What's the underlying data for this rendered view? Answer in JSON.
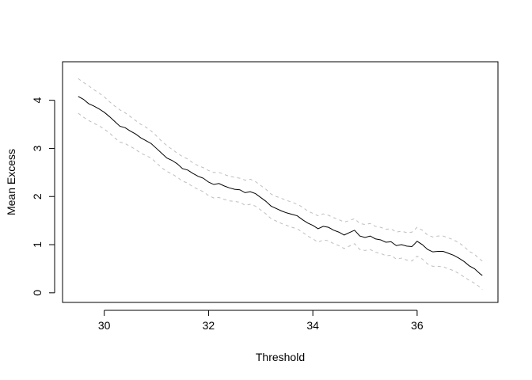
{
  "chart_data": {
    "type": "line",
    "title": "",
    "xlabel": "Threshold",
    "ylabel": "Mean Excess",
    "xlim": [
      29.2,
      37.55
    ],
    "ylim": [
      -0.2,
      4.8
    ],
    "x_ticks": [
      30,
      32,
      34,
      36
    ],
    "y_ticks": [
      0,
      1,
      2,
      3,
      4
    ],
    "grid": false,
    "legend": "none",
    "series": [
      {
        "role": "estimate",
        "color": "#000000",
        "line_style": "solid",
        "points": [
          [
            29.5,
            4.08
          ],
          [
            29.6,
            4.02
          ],
          [
            29.7,
            3.93
          ],
          [
            29.8,
            3.88
          ],
          [
            29.9,
            3.82
          ],
          [
            30.0,
            3.75
          ],
          [
            30.1,
            3.66
          ],
          [
            30.2,
            3.56
          ],
          [
            30.3,
            3.46
          ],
          [
            30.4,
            3.43
          ],
          [
            30.5,
            3.36
          ],
          [
            30.6,
            3.3
          ],
          [
            30.7,
            3.22
          ],
          [
            30.8,
            3.16
          ],
          [
            30.9,
            3.1
          ],
          [
            31.0,
            3.0
          ],
          [
            31.1,
            2.9
          ],
          [
            31.2,
            2.8
          ],
          [
            31.3,
            2.75
          ],
          [
            31.4,
            2.68
          ],
          [
            31.5,
            2.58
          ],
          [
            31.6,
            2.55
          ],
          [
            31.7,
            2.48
          ],
          [
            31.8,
            2.42
          ],
          [
            31.9,
            2.38
          ],
          [
            32.0,
            2.3
          ],
          [
            32.1,
            2.25
          ],
          [
            32.2,
            2.27
          ],
          [
            32.3,
            2.22
          ],
          [
            32.4,
            2.18
          ],
          [
            32.5,
            2.15
          ],
          [
            32.6,
            2.14
          ],
          [
            32.7,
            2.08
          ],
          [
            32.8,
            2.1
          ],
          [
            32.9,
            2.06
          ],
          [
            33.0,
            1.98
          ],
          [
            33.1,
            1.9
          ],
          [
            33.2,
            1.8
          ],
          [
            33.3,
            1.75
          ],
          [
            33.4,
            1.7
          ],
          [
            33.5,
            1.66
          ],
          [
            33.6,
            1.63
          ],
          [
            33.7,
            1.6
          ],
          [
            33.8,
            1.52
          ],
          [
            33.9,
            1.45
          ],
          [
            34.0,
            1.4
          ],
          [
            34.1,
            1.33
          ],
          [
            34.2,
            1.38
          ],
          [
            34.3,
            1.36
          ],
          [
            34.4,
            1.3
          ],
          [
            34.5,
            1.26
          ],
          [
            34.6,
            1.2
          ],
          [
            34.7,
            1.25
          ],
          [
            34.8,
            1.3
          ],
          [
            34.9,
            1.18
          ],
          [
            35.0,
            1.15
          ],
          [
            35.1,
            1.18
          ],
          [
            35.2,
            1.12
          ],
          [
            35.3,
            1.1
          ],
          [
            35.4,
            1.05
          ],
          [
            35.5,
            1.06
          ],
          [
            35.6,
            0.98
          ],
          [
            35.7,
            1.0
          ],
          [
            35.8,
            0.97
          ],
          [
            35.9,
            0.96
          ],
          [
            36.0,
            1.07
          ],
          [
            36.1,
            1.0
          ],
          [
            36.2,
            0.9
          ],
          [
            36.3,
            0.85
          ],
          [
            36.4,
            0.86
          ],
          [
            36.5,
            0.86
          ],
          [
            36.6,
            0.82
          ],
          [
            36.7,
            0.78
          ],
          [
            36.8,
            0.72
          ],
          [
            36.9,
            0.65
          ],
          [
            37.0,
            0.56
          ],
          [
            37.1,
            0.5
          ],
          [
            37.2,
            0.4
          ],
          [
            37.25,
            0.36
          ]
        ]
      },
      {
        "role": "upper-confidence-band",
        "color": "#bebebe",
        "line_style": "dashed",
        "points": [
          [
            29.5,
            4.45
          ],
          [
            29.6,
            4.37
          ],
          [
            29.7,
            4.3
          ],
          [
            29.8,
            4.22
          ],
          [
            29.9,
            4.15
          ],
          [
            30.0,
            4.07
          ],
          [
            30.1,
            3.97
          ],
          [
            30.2,
            3.88
          ],
          [
            30.3,
            3.8
          ],
          [
            30.4,
            3.74
          ],
          [
            30.5,
            3.66
          ],
          [
            30.6,
            3.58
          ],
          [
            30.7,
            3.5
          ],
          [
            30.8,
            3.44
          ],
          [
            30.9,
            3.36
          ],
          [
            31.0,
            3.26
          ],
          [
            31.1,
            3.15
          ],
          [
            31.2,
            3.06
          ],
          [
            31.3,
            2.98
          ],
          [
            31.4,
            2.9
          ],
          [
            31.5,
            2.83
          ],
          [
            31.6,
            2.78
          ],
          [
            31.7,
            2.7
          ],
          [
            31.8,
            2.64
          ],
          [
            31.9,
            2.6
          ],
          [
            32.0,
            2.54
          ],
          [
            32.1,
            2.5
          ],
          [
            32.2,
            2.5
          ],
          [
            32.3,
            2.46
          ],
          [
            32.4,
            2.42
          ],
          [
            32.5,
            2.4
          ],
          [
            32.6,
            2.38
          ],
          [
            32.7,
            2.34
          ],
          [
            32.8,
            2.36
          ],
          [
            32.9,
            2.31
          ],
          [
            33.0,
            2.23
          ],
          [
            33.1,
            2.15
          ],
          [
            33.2,
            2.05
          ],
          [
            33.3,
            2.0
          ],
          [
            33.4,
            1.96
          ],
          [
            33.5,
            1.92
          ],
          [
            33.6,
            1.88
          ],
          [
            33.7,
            1.84
          ],
          [
            33.8,
            1.78
          ],
          [
            33.9,
            1.7
          ],
          [
            34.0,
            1.65
          ],
          [
            34.1,
            1.6
          ],
          [
            34.2,
            1.64
          ],
          [
            34.3,
            1.61
          ],
          [
            34.4,
            1.56
          ],
          [
            34.5,
            1.52
          ],
          [
            34.6,
            1.47
          ],
          [
            34.7,
            1.5
          ],
          [
            34.8,
            1.54
          ],
          [
            34.9,
            1.44
          ],
          [
            35.0,
            1.42
          ],
          [
            35.1,
            1.44
          ],
          [
            35.2,
            1.38
          ],
          [
            35.3,
            1.36
          ],
          [
            35.4,
            1.32
          ],
          [
            35.5,
            1.33
          ],
          [
            35.6,
            1.26
          ],
          [
            35.7,
            1.28
          ],
          [
            35.8,
            1.25
          ],
          [
            35.9,
            1.26
          ],
          [
            36.0,
            1.36
          ],
          [
            36.1,
            1.3
          ],
          [
            36.2,
            1.2
          ],
          [
            36.3,
            1.16
          ],
          [
            36.4,
            1.18
          ],
          [
            36.5,
            1.18
          ],
          [
            36.6,
            1.14
          ],
          [
            36.7,
            1.1
          ],
          [
            36.8,
            1.04
          ],
          [
            36.9,
            0.96
          ],
          [
            37.0,
            0.86
          ],
          [
            37.1,
            0.8
          ],
          [
            37.2,
            0.7
          ],
          [
            37.25,
            0.66
          ]
        ]
      },
      {
        "role": "lower-confidence-band",
        "color": "#bebebe",
        "line_style": "dashed",
        "points": [
          [
            29.5,
            3.73
          ],
          [
            29.6,
            3.65
          ],
          [
            29.7,
            3.58
          ],
          [
            29.8,
            3.52
          ],
          [
            29.9,
            3.47
          ],
          [
            30.0,
            3.4
          ],
          [
            30.1,
            3.32
          ],
          [
            30.2,
            3.22
          ],
          [
            30.3,
            3.13
          ],
          [
            30.4,
            3.1
          ],
          [
            30.5,
            3.04
          ],
          [
            30.6,
            2.98
          ],
          [
            30.7,
            2.9
          ],
          [
            30.8,
            2.85
          ],
          [
            30.9,
            2.8
          ],
          [
            31.0,
            2.7
          ],
          [
            31.1,
            2.6
          ],
          [
            31.2,
            2.52
          ],
          [
            31.3,
            2.47
          ],
          [
            31.4,
            2.4
          ],
          [
            31.5,
            2.32
          ],
          [
            31.6,
            2.28
          ],
          [
            31.7,
            2.2
          ],
          [
            31.8,
            2.15
          ],
          [
            31.9,
            2.1
          ],
          [
            32.0,
            2.02
          ],
          [
            32.1,
            1.97
          ],
          [
            32.2,
            1.98
          ],
          [
            32.3,
            1.94
          ],
          [
            32.4,
            1.91
          ],
          [
            32.5,
            1.9
          ],
          [
            32.6,
            1.88
          ],
          [
            32.7,
            1.82
          ],
          [
            32.8,
            1.84
          ],
          [
            32.9,
            1.8
          ],
          [
            33.0,
            1.72
          ],
          [
            33.1,
            1.64
          ],
          [
            33.2,
            1.54
          ],
          [
            33.3,
            1.49
          ],
          [
            33.4,
            1.44
          ],
          [
            33.5,
            1.4
          ],
          [
            33.6,
            1.36
          ],
          [
            33.7,
            1.33
          ],
          [
            33.8,
            1.26
          ],
          [
            33.9,
            1.18
          ],
          [
            34.0,
            1.12
          ],
          [
            34.1,
            1.05
          ],
          [
            34.2,
            1.1
          ],
          [
            34.3,
            1.08
          ],
          [
            34.4,
            1.02
          ],
          [
            34.5,
            0.98
          ],
          [
            34.6,
            0.92
          ],
          [
            34.7,
            0.97
          ],
          [
            34.8,
            1.02
          ],
          [
            34.9,
            0.9
          ],
          [
            35.0,
            0.88
          ],
          [
            35.1,
            0.9
          ],
          [
            35.2,
            0.84
          ],
          [
            35.3,
            0.82
          ],
          [
            35.4,
            0.77
          ],
          [
            35.5,
            0.78
          ],
          [
            35.6,
            0.7
          ],
          [
            35.7,
            0.72
          ],
          [
            35.8,
            0.68
          ],
          [
            35.9,
            0.66
          ],
          [
            36.0,
            0.76
          ],
          [
            36.1,
            0.7
          ],
          [
            36.2,
            0.6
          ],
          [
            36.3,
            0.55
          ],
          [
            36.4,
            0.55
          ],
          [
            36.5,
            0.54
          ],
          [
            36.6,
            0.5
          ],
          [
            36.7,
            0.46
          ],
          [
            36.8,
            0.4
          ],
          [
            36.9,
            0.33
          ],
          [
            37.0,
            0.26
          ],
          [
            37.1,
            0.2
          ],
          [
            37.2,
            0.12
          ],
          [
            37.25,
            0.07
          ]
        ]
      }
    ]
  }
}
